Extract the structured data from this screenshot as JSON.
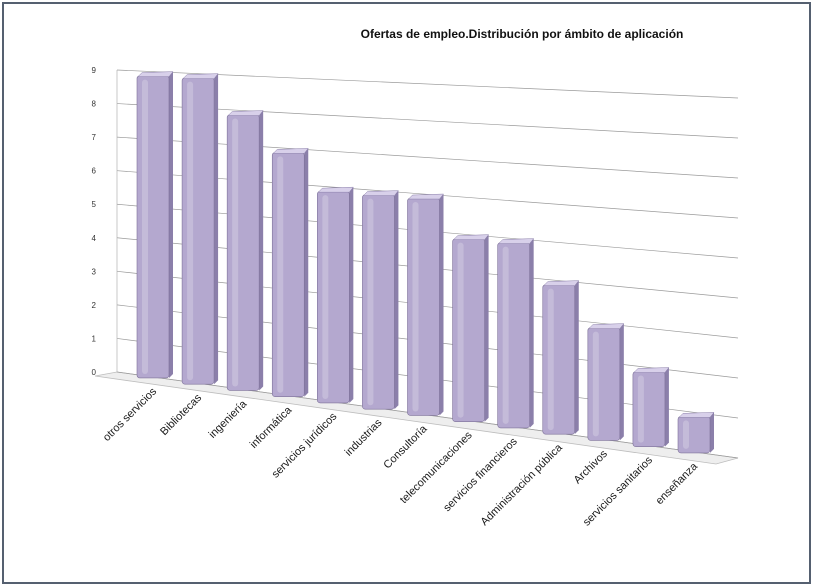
{
  "chart_data": {
    "type": "bar",
    "title": "Ofertas de empleo.Distribución por ámbito de aplicación",
    "categories": [
      "otros servicios",
      "Bibliotecas",
      "ingeniería",
      "informática",
      "servicios jurídicos",
      "industrias",
      "Consultoría",
      "telecomunicaciones",
      "servicios financieros",
      "Administración pública",
      "Archivos",
      "servicios sanitarios",
      "enseñanza"
    ],
    "values": [
      9,
      9,
      8,
      7,
      6,
      6,
      6,
      5,
      5,
      4,
      3,
      2,
      1
    ],
    "ylim": [
      0,
      9
    ],
    "yticks": [
      "0",
      "1",
      "2",
      "3",
      "4",
      "5",
      "6",
      "7",
      "8",
      "9"
    ],
    "grid": true,
    "three_d": true,
    "colors": {
      "bar_front": "#b4a8cf",
      "bar_side": "#8b7faa",
      "bar_top": "#d8d0ea",
      "grid": "#9a9a9a",
      "floor": "#eeeeee"
    }
  }
}
